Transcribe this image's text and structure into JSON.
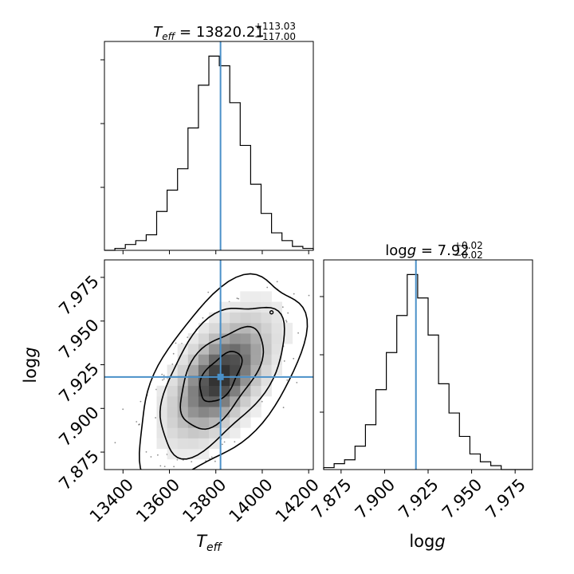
{
  "chart_data": {
    "type": "corner",
    "truth_color": "#4a90c8",
    "parameters": [
      {
        "name": "T_eff",
        "range": [
          13320,
          14220
        ],
        "ticks": [
          13400,
          13600,
          13800,
          14000,
          14200
        ],
        "tick_labels": [
          "13400",
          "13600",
          "13800",
          "14000",
          "14200"
        ],
        "title_prefix": "T",
        "title_sub": "eff",
        "title_value": " = 13820.21",
        "title_sup": "+113.03",
        "title_inf": "−117.00",
        "axis_label_main": "T",
        "axis_label_sub": "eff",
        "truth": 13820.21,
        "hist_edges": [
          13320,
          13365,
          13410,
          13455,
          13500,
          13545,
          13590,
          13635,
          13680,
          13725,
          13770,
          13815,
          13860,
          13905,
          13950,
          13995,
          14040,
          14085,
          14130,
          14175,
          14220
        ],
        "hist_values": [
          0.0,
          0.01,
          0.03,
          0.05,
          0.08,
          0.2,
          0.31,
          0.42,
          0.63,
          0.85,
          1.0,
          0.95,
          0.76,
          0.54,
          0.34,
          0.19,
          0.09,
          0.05,
          0.02,
          0.01
        ]
      },
      {
        "name": "logg",
        "range": [
          7.865,
          7.985
        ],
        "ticks": [
          7.875,
          7.9,
          7.925,
          7.95,
          7.975
        ],
        "tick_labels": [
          "7.875",
          "7.900",
          "7.925",
          "7.950",
          "7.975"
        ],
        "title_prefix": "log",
        "title_sub": "g",
        "title_value": " = 7.92",
        "title_sup": "+0.02",
        "title_inf": "−0.02",
        "axis_label_main": "log",
        "axis_label_sub": "g",
        "truth": 7.918,
        "hist_edges": [
          7.865,
          7.871,
          7.877,
          7.883,
          7.889,
          7.895,
          7.901,
          7.907,
          7.913,
          7.919,
          7.925,
          7.931,
          7.937,
          7.943,
          7.949,
          7.955,
          7.961,
          7.967,
          7.973,
          7.979,
          7.985
        ],
        "hist_values": [
          0.01,
          0.03,
          0.05,
          0.12,
          0.23,
          0.41,
          0.6,
          0.79,
          1.0,
          0.88,
          0.69,
          0.44,
          0.29,
          0.17,
          0.08,
          0.04,
          0.02,
          0.0,
          0.0,
          0.0
        ]
      }
    ],
    "joint": {
      "center": [
        13820,
        7.918
      ],
      "sigma": [
        115,
        0.0185
      ],
      "correlation": 0.55,
      "contour_levels_sigma": [
        0.5,
        1.0,
        1.5,
        2.0
      ]
    }
  }
}
